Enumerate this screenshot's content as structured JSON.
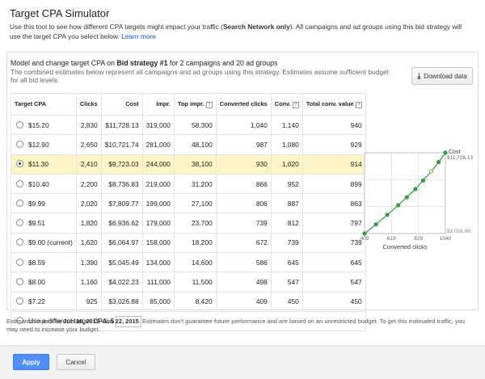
{
  "dialog": {
    "title": "Target CPA Simulator",
    "intro_part1": "Use this tool to see how different CPA targets might impact your traffic (",
    "intro_bold": "Search Network only",
    "intro_part2": "). All campaigns and ad groups using this bid strategy will use the target CPA you select below. ",
    "learn_more": "Learn more"
  },
  "panel": {
    "header_prefix": "Model and change target CPA on ",
    "strategy_name": "Bid strategy #1",
    "header_suffix": " for 2 campaigns and 20 ad groups",
    "sub_text": "The combined estimates below represent all campaigns and ad groups using this strategy. Estimates assume sufficient budget for all bid levels.",
    "download_label": "Download data"
  },
  "table": {
    "headers": {
      "target_cpa": "Target CPA",
      "clicks": "Clicks",
      "cost": "Cost",
      "impr": "Impr.",
      "top_impr": "Top impr.",
      "converted_clicks": "Converted clicks",
      "conv": "Conv.",
      "total_conv_value": "Total conv. value"
    },
    "rows": [
      {
        "cpa": "$15.20",
        "clicks": "2,830",
        "cost": "$11,728.13",
        "impr": "319,000",
        "top": "58,300",
        "cc": "1,040",
        "conv": "1,140",
        "value": "940"
      },
      {
        "cpa": "$12.90",
        "clicks": "2,650",
        "cost": "$10,721.74",
        "impr": "281,000",
        "top": "48,100",
        "cc": "987",
        "conv": "1,080",
        "value": "929"
      },
      {
        "cpa": "$11.30",
        "clicks": "2,410",
        "cost": "$9,723.03",
        "impr": "244,000",
        "top": "38,100",
        "cc": "930",
        "conv": "1,020",
        "value": "914"
      },
      {
        "cpa": "$10.40",
        "clicks": "2,200",
        "cost": "$8,736.83",
        "impr": "219,000",
        "top": "31,200",
        "cc": "866",
        "conv": "952",
        "value": "899"
      },
      {
        "cpa": "$9.99",
        "clicks": "2,020",
        "cost": "$7,809.77",
        "impr": "199,000",
        "top": "27,100",
        "cc": "806",
        "conv": "887",
        "value": "863"
      },
      {
        "cpa": "$9.51",
        "clicks": "1,820",
        "cost": "$6,936.62",
        "impr": "179,000",
        "top": "23,700",
        "cc": "739",
        "conv": "812",
        "value": "797"
      },
      {
        "cpa": "$9.00 (current)",
        "clicks": "1,620",
        "cost": "$6,064.97",
        "impr": "158,000",
        "top": "18,200",
        "cc": "672",
        "conv": "739",
        "value": "739"
      },
      {
        "cpa": "$8.59",
        "clicks": "1,390",
        "cost": "$5,045.49",
        "impr": "134,000",
        "top": "14,600",
        "cc": "586",
        "conv": "645",
        "value": "645"
      },
      {
        "cpa": "$8.00",
        "clicks": "1,160",
        "cost": "$4,022.23",
        "impr": "111,000",
        "top": "11,500",
        "cc": "498",
        "conv": "547",
        "value": "547"
      },
      {
        "cpa": "$7.22",
        "clicks": "925",
        "cost": "$3,026.88",
        "impr": "85,000",
        "top": "8,420",
        "cc": "409",
        "conv": "450",
        "value": "450"
      }
    ],
    "selected_index": 2,
    "other_label": "Use a different target CPA: $"
  },
  "chart_data": {
    "type": "line",
    "title": "",
    "xlabel": "Converted clicks",
    "ylabel": "Cost",
    "x_ticks": [
      "409",
      "619",
      "829",
      "1040"
    ],
    "y_ticks": [
      "$3,026.88",
      "$11,728.13"
    ],
    "xlim": [
      409,
      1040
    ],
    "ylim": [
      3026.88,
      11728.13
    ],
    "x": [
      409,
      498,
      586,
      672,
      739,
      806,
      866,
      930,
      987,
      1040
    ],
    "y": [
      3026.88,
      4022.23,
      5045.49,
      6064.97,
      6936.62,
      7809.77,
      8736.83,
      9723.03,
      10721.74,
      11728.13
    ],
    "selected_point_index": 7,
    "series_color": "#2e9e3e",
    "grid": true
  },
  "footnote": {
    "prefix": "Estimated impact for ",
    "date_range": "Jun 16, 2015–Jun 22, 2015",
    "suffix": ". Estimates don't guarantee future performance and are based on an unrestricted budget. To get this estimated traffic, you may need to increase your budget."
  },
  "footer": {
    "apply_label": "Apply",
    "cancel_label": "Cancel"
  },
  "colors": {
    "accent": "#4d90fe",
    "selected_row": "#fdf4c4",
    "link": "#1155cc"
  }
}
